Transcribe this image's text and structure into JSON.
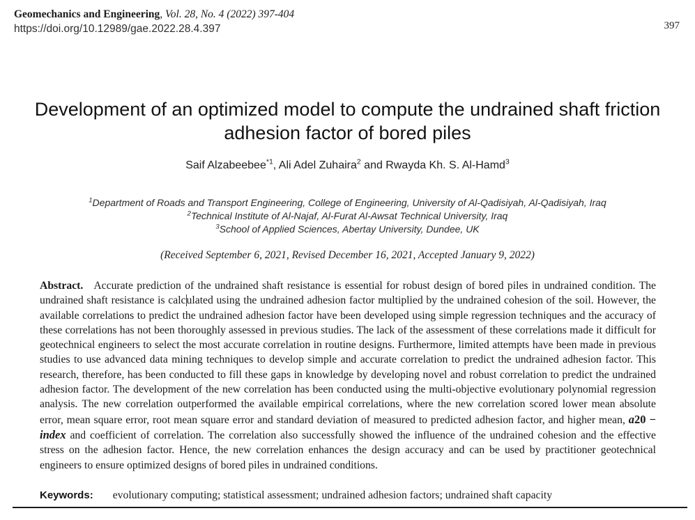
{
  "header": {
    "journal_bold": "Geomechanics and Engineering",
    "journal_rest": ", Vol. 28, No. 4 (2022) 397-404",
    "doi": "https://doi.org/10.12989/gae.2022.28.4.397",
    "page_number": "397"
  },
  "title": "Development of an optimized model to compute the undrained shaft friction adhesion factor of bored piles",
  "authors": {
    "name1": "Saif Alzabeebee",
    "sup1": "*1",
    "name2": ", Ali Adel Zuhaira",
    "sup2": "2",
    "name3": " and Rwayda Kh. S. Al-Hamd",
    "sup3": "3"
  },
  "affiliations": [
    {
      "sup": "1",
      "text": "Department of Roads and Transport Engineering, College of Engineering, University of Al-Qadisiyah, Al-Qadisiyah, Iraq"
    },
    {
      "sup": "2",
      "text": "Technical Institute of Al-Najaf, Al-Furat Al-Awsat Technical University, Iraq"
    },
    {
      "sup": "3",
      "text": "School of Applied Sciences, Abertay University, Dundee, UK"
    }
  ],
  "dates": "(Received September 6, 2021, Revised December 16, 2021, Accepted January 9, 2022)",
  "abstract": {
    "label": "Abstract.",
    "part1": "Accurate prediction of the undrained shaft resistance is essential for robust design of bored piles in undrained condition. The undrained shaft resistance is calc",
    "part2": "ulated using the undrained adhesion factor multiplied by the undrained cohesion of the soil. However, the available correlations to predict the undrained adhesion factor have been developed using simple regression techniques and the accuracy of these correlations has not been thoroughly assessed in previous studies. The lack of the assessment of these correlations made it difficult for geotechnical engineers to select the most accurate correlation in routine designs. Furthermore, limited attempts have been made in previous studies to use advanced data mining techniques to develop simple and accurate correlation to predict the undrained adhesion factor. This research, therefore, has been conducted to fill these gaps in knowledge by developing novel and robust correlation to predict the undrained adhesion factor. The development of the new correlation has been conducted using the multi-objective evolutionary polynomial regression analysis. The new correlation outperformed the available empirical correlations, where the new correlation scored lower mean absolute error, mean square error, root mean square error and standard deviation of measured to predicted adhesion factor, and higher mean, ",
    "math_a": "a",
    "math_mid": "20 − ",
    "math_index": "index",
    "part3": " and coefficient of correlation. The correlation also successfully showed the influence of the undrained cohesion and the effective stress on the adhesion factor. Hence, the new correlation enhances the design accuracy and can be used by practitioner geotechnical engineers to ensure optimized designs of bored piles in undrained conditions."
  },
  "keywords": {
    "label": "Keywords:",
    "text": "evolutionary computing; statistical assessment; undrained adhesion factors; undrained shaft capacity"
  }
}
